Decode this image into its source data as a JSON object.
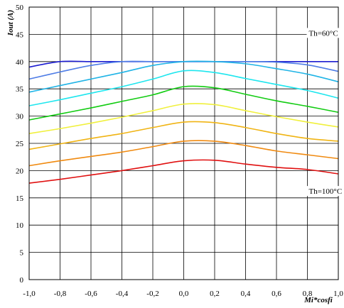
{
  "chart_data": {
    "type": "line",
    "xlabel": "Mi*cosfi",
    "ylabel": "Iout (A)",
    "xlim": [
      -1.0,
      1.0
    ],
    "ylim": [
      0,
      50
    ],
    "x_ticks": [
      "-1,0",
      "-0,8",
      "-0,6",
      "-0,4",
      "-0,2",
      "0,0",
      "0,2",
      "0,4",
      "0,6",
      "0,8",
      "1,0"
    ],
    "y_ticks": [
      "0",
      "5",
      "10",
      "15",
      "20",
      "25",
      "30",
      "35",
      "40",
      "45",
      "50"
    ],
    "grid": true,
    "annotations": [
      {
        "text": "Th=60°C",
        "x": 0.8,
        "y": 45
      },
      {
        "text": "Th=100°C",
        "x": 0.8,
        "y": 16
      }
    ],
    "series": [
      {
        "color": "#1c1cd0",
        "x": [
          -1.0,
          -0.8,
          -0.6,
          -0.4,
          -0.2,
          0.0,
          0.2,
          0.4,
          0.6,
          0.8,
          1.0
        ],
        "y": [
          39.0,
          40.0,
          40.0,
          40.0,
          40.0,
          40.0,
          40.0,
          40.0,
          40.0,
          40.0,
          40.0
        ]
      },
      {
        "color": "#4f7de6",
        "x": [
          -1.0,
          -0.8,
          -0.6,
          -0.4,
          -0.2,
          0.0,
          0.2,
          0.4,
          0.6,
          0.8,
          1.0
        ],
        "y": [
          36.8,
          38.1,
          39.3,
          40.0,
          40.0,
          40.0,
          40.0,
          40.0,
          39.9,
          39.4,
          38.2
        ]
      },
      {
        "color": "#20b4e6",
        "x": [
          -1.0,
          -0.8,
          -0.6,
          -0.4,
          -0.2,
          0.0,
          0.2,
          0.4,
          0.6,
          0.8,
          1.0
        ],
        "y": [
          34.4,
          35.6,
          36.8,
          38.0,
          39.3,
          40.0,
          40.0,
          39.6,
          38.7,
          37.7,
          36.3
        ]
      },
      {
        "color": "#1ee6ee",
        "x": [
          -1.0,
          -0.8,
          -0.6,
          -0.4,
          -0.2,
          0.0,
          0.2,
          0.4,
          0.6,
          0.8,
          1.0
        ],
        "y": [
          31.9,
          33.0,
          34.2,
          35.4,
          36.8,
          38.3,
          38.0,
          36.9,
          35.8,
          34.7,
          33.3
        ]
      },
      {
        "color": "#12cc12",
        "x": [
          -1.0,
          -0.8,
          -0.6,
          -0.4,
          -0.2,
          0.0,
          0.2,
          0.4,
          0.6,
          0.8,
          1.0
        ],
        "y": [
          29.3,
          30.4,
          31.5,
          32.7,
          33.9,
          35.4,
          35.2,
          34.0,
          32.8,
          31.8,
          30.7
        ]
      },
      {
        "color": "#f0f03c",
        "x": [
          -1.0,
          -0.8,
          -0.6,
          -0.4,
          -0.2,
          0.0,
          0.2,
          0.4,
          0.6,
          0.8,
          1.0
        ],
        "y": [
          26.8,
          27.7,
          28.7,
          29.8,
          31.0,
          32.2,
          32.1,
          31.0,
          29.9,
          28.9,
          28.0
        ]
      },
      {
        "color": "#f0b414",
        "x": [
          -1.0,
          -0.8,
          -0.6,
          -0.4,
          -0.2,
          0.0,
          0.2,
          0.4,
          0.6,
          0.8,
          1.0
        ],
        "y": [
          23.9,
          24.9,
          25.9,
          26.8,
          27.9,
          28.9,
          28.8,
          27.9,
          26.8,
          25.9,
          25.4
        ]
      },
      {
        "color": "#f08a10",
        "x": [
          -1.0,
          -0.8,
          -0.6,
          -0.4,
          -0.2,
          0.0,
          0.2,
          0.4,
          0.6,
          0.8,
          1.0
        ],
        "y": [
          20.9,
          21.8,
          22.6,
          23.4,
          24.4,
          25.4,
          25.4,
          24.6,
          23.6,
          22.9,
          22.2
        ]
      },
      {
        "color": "#e01010",
        "x": [
          -1.0,
          -0.8,
          -0.6,
          -0.4,
          -0.2,
          0.0,
          0.2,
          0.4,
          0.6,
          0.8,
          1.0
        ],
        "y": [
          17.7,
          18.4,
          19.2,
          20.0,
          20.9,
          21.8,
          21.9,
          21.2,
          20.6,
          20.2,
          19.4
        ]
      }
    ]
  }
}
